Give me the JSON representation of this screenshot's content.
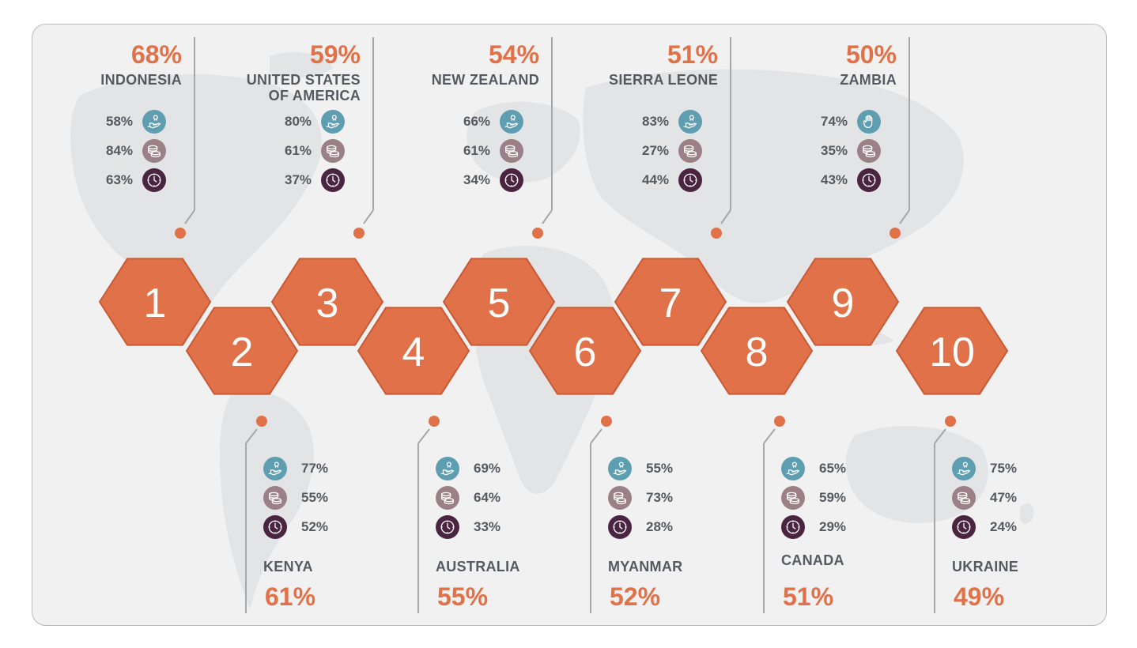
{
  "colors": {
    "accent": "#e07148",
    "hex_fill": "#e07148",
    "hex_stroke": "#c95a35",
    "text": "#555a61",
    "line": "#a7a7a7",
    "icon_teal": "#5f9eb1",
    "icon_mauve": "#9b8088",
    "icon_plum": "#4a2440",
    "map": "#e2e3e4",
    "background": "#f1f1f2"
  },
  "countries": [
    {
      "rank": "1",
      "name": "INDONESIA",
      "percent": "68%",
      "stats": [
        {
          "icon": "hand-coin-icon",
          "value": "58%"
        },
        {
          "icon": "coins-icon",
          "value": "84%"
        },
        {
          "icon": "clock-icon",
          "value": "63%"
        }
      ]
    },
    {
      "rank": "2",
      "name": "KENYA",
      "percent": "61%",
      "stats": [
        {
          "icon": "hand-coin-icon",
          "value": "77%"
        },
        {
          "icon": "coins-icon",
          "value": "55%"
        },
        {
          "icon": "clock-icon",
          "value": "52%"
        }
      ]
    },
    {
      "rank": "3",
      "name_lines": [
        "UNITED STATES",
        "OF AMERICA"
      ],
      "percent": "59%",
      "stats": [
        {
          "icon": "hand-coin-icon",
          "value": "80%"
        },
        {
          "icon": "coins-icon",
          "value": "61%"
        },
        {
          "icon": "clock-icon",
          "value": "37%"
        }
      ]
    },
    {
      "rank": "4",
      "name": "AUSTRALIA",
      "percent": "55%",
      "stats": [
        {
          "icon": "hand-coin-icon",
          "value": "69%"
        },
        {
          "icon": "coins-icon",
          "value": "64%"
        },
        {
          "icon": "clock-icon",
          "value": "33%"
        }
      ]
    },
    {
      "rank": "5",
      "name": "NEW ZEALAND",
      "percent": "54%",
      "stats": [
        {
          "icon": "hand-coin-icon",
          "value": "66%"
        },
        {
          "icon": "coins-icon",
          "value": "61%"
        },
        {
          "icon": "clock-icon",
          "value": "34%"
        }
      ]
    },
    {
      "rank": "6",
      "name": "MYANMAR",
      "percent": "52%",
      "stats": [
        {
          "icon": "hand-coin-icon",
          "value": "55%"
        },
        {
          "icon": "coins-icon",
          "value": "73%"
        },
        {
          "icon": "clock-icon",
          "value": "28%"
        }
      ]
    },
    {
      "rank": "7",
      "name": "SIERRA LEONE",
      "percent": "51%",
      "stats": [
        {
          "icon": "hand-coin-icon",
          "value": "83%"
        },
        {
          "icon": "coins-icon",
          "value": "27%"
        },
        {
          "icon": "clock-icon",
          "value": "44%"
        }
      ]
    },
    {
      "rank": "8",
      "name": "CANADA",
      "percent": "51%",
      "stats": [
        {
          "icon": "hand-coin-icon",
          "value": "65%"
        },
        {
          "icon": "coins-icon",
          "value": "59%"
        },
        {
          "icon": "clock-icon",
          "value": "29%"
        }
      ]
    },
    {
      "rank": "9",
      "name": "ZAMBIA",
      "percent": "50%",
      "stats": [
        {
          "icon": "raised-hand-icon",
          "value": "74%"
        },
        {
          "icon": "coins-icon",
          "value": "35%"
        },
        {
          "icon": "clock-icon",
          "value": "43%"
        }
      ]
    },
    {
      "rank": "10",
      "name": "UKRAINE",
      "percent": "49%",
      "stats": [
        {
          "icon": "hand-coin-icon",
          "value": "75%"
        },
        {
          "icon": "coins-icon",
          "value": "47%"
        },
        {
          "icon": "clock-icon",
          "value": "24%"
        }
      ]
    }
  ]
}
